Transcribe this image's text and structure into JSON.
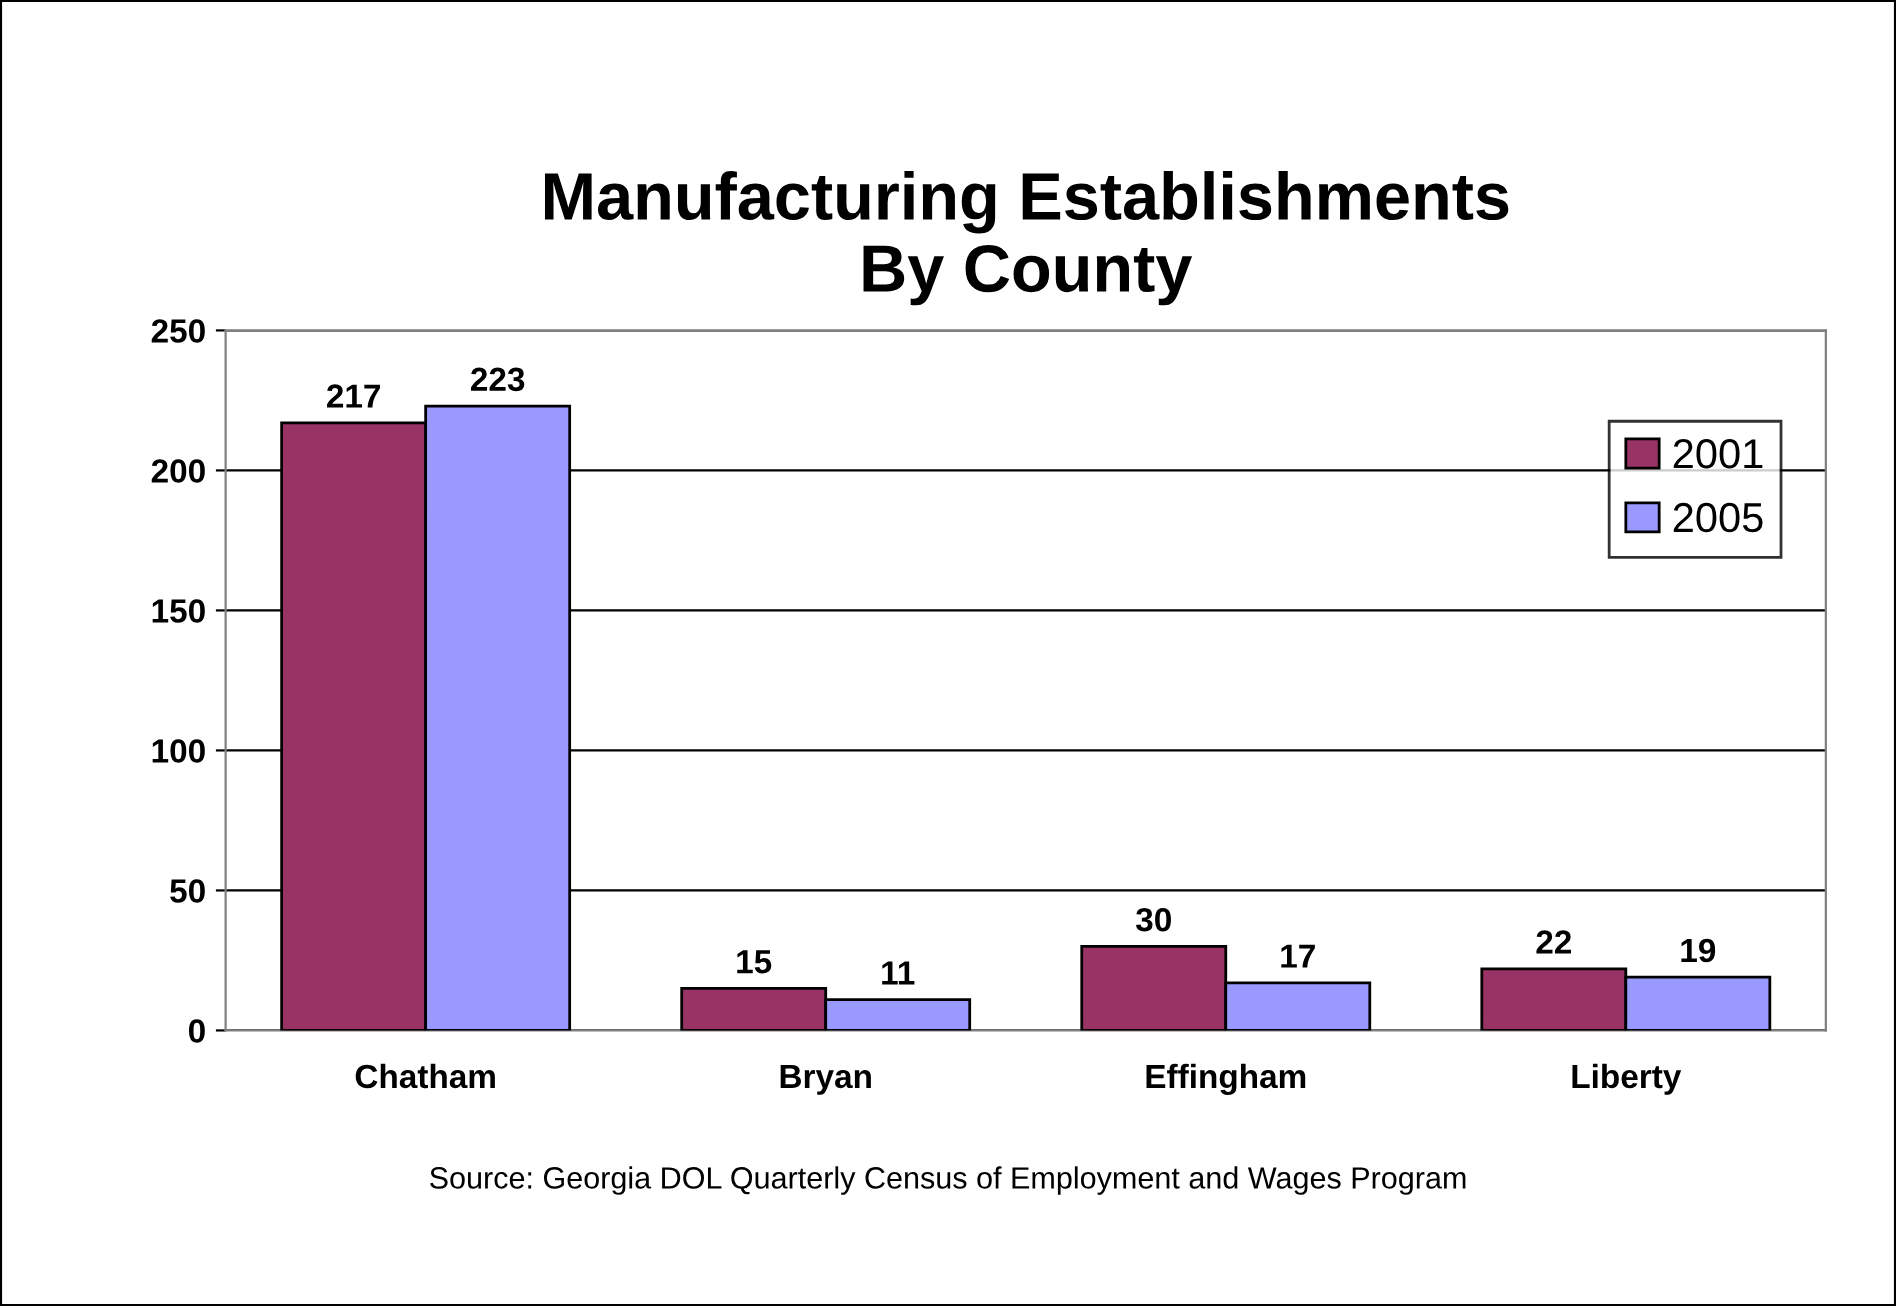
{
  "chart_data": {
    "type": "bar",
    "title": "Manufacturing Establishments\nBy County",
    "categories": [
      "Chatham",
      "Bryan",
      "Effingham",
      "Liberty"
    ],
    "series": [
      {
        "name": "2001",
        "color": "#993366",
        "values": [
          217,
          15,
          30,
          22
        ]
      },
      {
        "name": "2005",
        "color": "#9999ff",
        "values": [
          223,
          11,
          17,
          19
        ]
      }
    ],
    "ylim": [
      0,
      250
    ],
    "yticks": [
      0,
      50,
      100,
      150,
      200,
      250
    ],
    "grid": "y",
    "legend": "top right",
    "data_labels": true,
    "annotations": [
      "Source: Georgia DOL Quarterly Census of Employment and Wages Program"
    ]
  }
}
